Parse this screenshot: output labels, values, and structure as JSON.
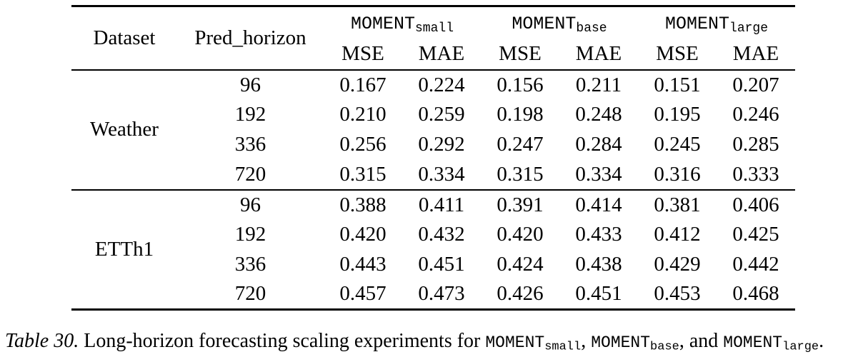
{
  "page": {
    "background": "#ffffff",
    "text_color": "#000000",
    "rule_color": "#000000"
  },
  "table": {
    "header": {
      "dataset_label": "Dataset",
      "horizon_label": "Pred_horizon",
      "groups": [
        {
          "model": "MOMENT",
          "size_sub": "small",
          "metrics": [
            "MSE",
            "MAE"
          ]
        },
        {
          "model": "MOMENT",
          "size_sub": "base",
          "metrics": [
            "MSE",
            "MAE"
          ]
        },
        {
          "model": "MOMENT",
          "size_sub": "large",
          "metrics": [
            "MSE",
            "MAE"
          ]
        }
      ]
    },
    "blocks": [
      {
        "dataset": "Weather",
        "rows": [
          {
            "horizon": "96",
            "values": [
              "0.167",
              "0.224",
              "0.156",
              "0.211",
              "0.151",
              "0.207"
            ]
          },
          {
            "horizon": "192",
            "values": [
              "0.210",
              "0.259",
              "0.198",
              "0.248",
              "0.195",
              "0.246"
            ]
          },
          {
            "horizon": "336",
            "values": [
              "0.256",
              "0.292",
              "0.247",
              "0.284",
              "0.245",
              "0.285"
            ]
          },
          {
            "horizon": "720",
            "values": [
              "0.315",
              "0.334",
              "0.315",
              "0.334",
              "0.316",
              "0.333"
            ]
          }
        ]
      },
      {
        "dataset": "ETTh1",
        "rows": [
          {
            "horizon": "96",
            "values": [
              "0.388",
              "0.411",
              "0.391",
              "0.414",
              "0.381",
              "0.406"
            ]
          },
          {
            "horizon": "192",
            "values": [
              "0.420",
              "0.432",
              "0.420",
              "0.433",
              "0.412",
              "0.425"
            ]
          },
          {
            "horizon": "336",
            "values": [
              "0.443",
              "0.451",
              "0.424",
              "0.438",
              "0.429",
              "0.442"
            ]
          },
          {
            "horizon": "720",
            "values": [
              "0.457",
              "0.473",
              "0.426",
              "0.451",
              "0.453",
              "0.468"
            ]
          }
        ]
      }
    ]
  },
  "caption": {
    "label": "Table 30.",
    "segments": [
      {
        "type": "text",
        "value": " Long-horizon forecasting scaling experiments for "
      },
      {
        "type": "model",
        "name": "MOMENT",
        "sub": "small"
      },
      {
        "type": "text",
        "value": ", "
      },
      {
        "type": "model",
        "name": "MOMENT",
        "sub": "base"
      },
      {
        "type": "text",
        "value": ", and "
      },
      {
        "type": "model",
        "name": "MOMENT",
        "sub": "large"
      },
      {
        "type": "text",
        "value": "."
      }
    ]
  }
}
